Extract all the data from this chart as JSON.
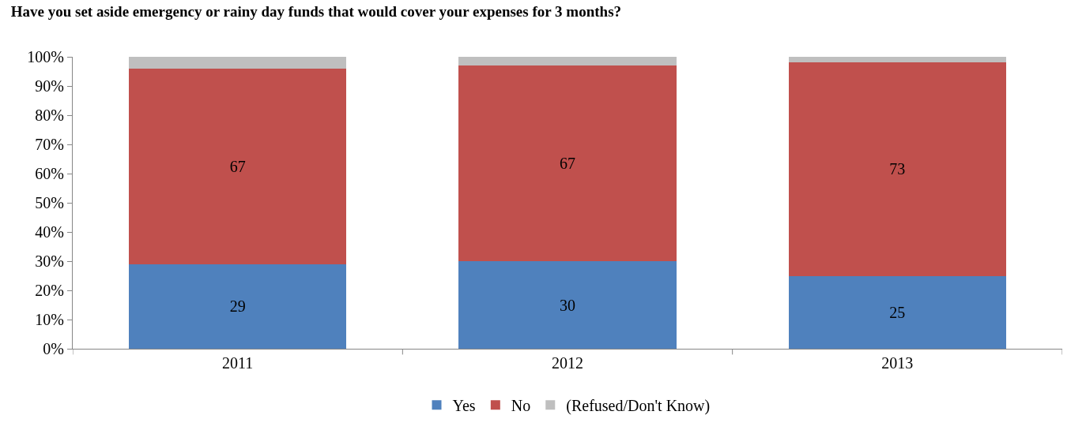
{
  "chart_data": {
    "type": "bar",
    "stacked": true,
    "title": "Have you set aside emergency or rainy day funds that would cover your expenses for 3 months?",
    "categories": [
      "2011",
      "2012",
      "2013"
    ],
    "series": [
      {
        "name": "Yes",
        "color": "#4f81bd",
        "values": [
          29,
          30,
          25
        ],
        "value_labels": [
          "29",
          "30",
          "25"
        ]
      },
      {
        "name": "No",
        "color": "#c0504d",
        "values": [
          67,
          67,
          73
        ],
        "value_labels": [
          "67",
          "67",
          "73"
        ]
      },
      {
        "name": "(Refused/Don't Know)",
        "color": "#bfbfbf",
        "values": [
          4,
          3,
          2
        ]
      }
    ],
    "ylim": [
      0,
      100
    ],
    "yticks": [
      {
        "value": 0,
        "label": "0%"
      },
      {
        "value": 10,
        "label": "10%"
      },
      {
        "value": 20,
        "label": "20%"
      },
      {
        "value": 30,
        "label": "30%"
      },
      {
        "value": 40,
        "label": "40%"
      },
      {
        "value": 50,
        "label": "50%"
      },
      {
        "value": 60,
        "label": "60%"
      },
      {
        "value": 70,
        "label": "70%"
      },
      {
        "value": 80,
        "label": "80%"
      },
      {
        "value": 90,
        "label": "90%"
      },
      {
        "value": 100,
        "label": "100%"
      }
    ],
    "legend": "bottom"
  }
}
